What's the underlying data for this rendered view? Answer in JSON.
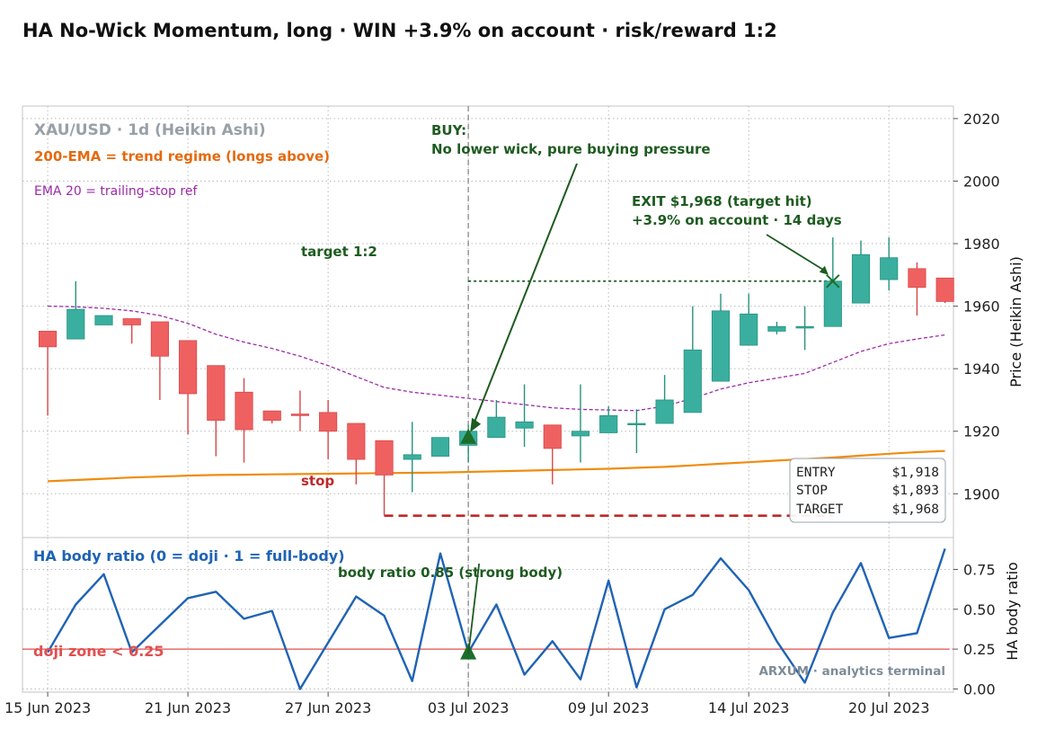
{
  "title": "HA No-Wick Momentum, long · WIN +3.9% on account · risk/reward 1:2",
  "colors": {
    "up": "#3aaf9f",
    "up_edge": "#27927f",
    "down": "#ef6161",
    "down_edge": "#d74747",
    "ema200": "#f08c10",
    "ema20": "#9c2aa8",
    "body_ratio": "#1f63b4",
    "doji_line": "#e05050",
    "annot_green": "#1e5b20",
    "stop_red": "#bd2a2a",
    "entry_line": "#999999"
  },
  "chart_data": [
    {
      "type": "candlestick",
      "subtitle": "XAU/USD · 1d (Heikin Ashi)",
      "ylabel": "Price (Heikin Ashi)",
      "ylim": [
        1886,
        2024
      ],
      "yticks": [
        1900,
        1920,
        1940,
        1960,
        1980,
        2000,
        2020
      ],
      "xlim": [
        -0.9,
        32.3
      ],
      "x_tick_labels": [
        {
          "i": 0,
          "label": "15 Jun 2023"
        },
        {
          "i": 5,
          "label": "21 Jun 2023"
        },
        {
          "i": 10,
          "label": "27 Jun 2023"
        },
        {
          "i": 15,
          "label": "03 Jul 2023"
        },
        {
          "i": 20,
          "label": "09 Jul 2023"
        },
        {
          "i": 25,
          "label": "14 Jul 2023"
        },
        {
          "i": 30,
          "label": "20 Jul 2023"
        }
      ],
      "grid": true,
      "candles": [
        {
          "o": 1952,
          "h": 1952,
          "l": 1925,
          "c": 1947
        },
        {
          "o": 1949.5,
          "h": 1968,
          "l": 1949.5,
          "c": 1959
        },
        {
          "o": 1954,
          "h": 1957,
          "l": 1954,
          "c": 1957
        },
        {
          "o": 1956,
          "h": 1956,
          "l": 1948,
          "c": 1954
        },
        {
          "o": 1955,
          "h": 1955,
          "l": 1930,
          "c": 1944
        },
        {
          "o": 1949,
          "h": 1949,
          "l": 1919,
          "c": 1932
        },
        {
          "o": 1941,
          "h": 1941,
          "l": 1912,
          "c": 1923.5
        },
        {
          "o": 1932.5,
          "h": 1937,
          "l": 1910,
          "c": 1920.5
        },
        {
          "o": 1926.5,
          "h": 1926.5,
          "l": 1922.5,
          "c": 1923.5
        },
        {
          "o": 1925.5,
          "h": 1933,
          "l": 1920,
          "c": 1925
        },
        {
          "o": 1926,
          "h": 1930,
          "l": 1911,
          "c": 1920
        },
        {
          "o": 1922.5,
          "h": 1922.5,
          "l": 1903,
          "c": 1911
        },
        {
          "o": 1917,
          "h": 1917,
          "l": 1893,
          "c": 1906
        },
        {
          "o": 1911,
          "h": 1923,
          "l": 1900.5,
          "c": 1912.5
        },
        {
          "o": 1912,
          "h": 1918,
          "l": 1912,
          "c": 1918
        },
        {
          "o": 1915.5,
          "h": 1922,
          "l": 1910,
          "c": 1920
        },
        {
          "o": 1918,
          "h": 1930,
          "l": 1918,
          "c": 1924.5
        },
        {
          "o": 1921,
          "h": 1935,
          "l": 1915,
          "c": 1923
        },
        {
          "o": 1922,
          "h": 1922,
          "l": 1903,
          "c": 1914.5
        },
        {
          "o": 1918.5,
          "h": 1935,
          "l": 1910,
          "c": 1920
        },
        {
          "o": 1919.5,
          "h": 1928,
          "l": 1919.5,
          "c": 1925
        },
        {
          "o": 1922.5,
          "h": 1927,
          "l": 1913,
          "c": 1922.5
        },
        {
          "o": 1922.5,
          "h": 1938,
          "l": 1922.5,
          "c": 1930
        },
        {
          "o": 1926,
          "h": 1960,
          "l": 1926,
          "c": 1946
        },
        {
          "o": 1936,
          "h": 1964,
          "l": 1936,
          "c": 1958.5
        },
        {
          "o": 1947.5,
          "h": 1964,
          "l": 1947.5,
          "c": 1957.5
        },
        {
          "o": 1952,
          "h": 1955,
          "l": 1951,
          "c": 1953.5
        },
        {
          "o": 1953,
          "h": 1960,
          "l": 1946,
          "c": 1953.5
        },
        {
          "o": 1953.5,
          "h": 1982,
          "l": 1953.5,
          "c": 1968
        },
        {
          "o": 1961,
          "h": 1981,
          "l": 1961,
          "c": 1976.5
        },
        {
          "o": 1968.5,
          "h": 1982,
          "l": 1965,
          "c": 1975.5
        },
        {
          "o": 1972,
          "h": 1974,
          "l": 1957,
          "c": 1966
        },
        {
          "o": 1969,
          "h": 1969,
          "l": 1961,
          "c": 1961.5
        }
      ],
      "ema200": [
        1904,
        1904.4,
        1904.8,
        1905.2,
        1905.5,
        1905.8,
        1906,
        1906.1,
        1906.2,
        1906.3,
        1906.4,
        1906.5,
        1906.6,
        1906.7,
        1906.8,
        1907,
        1907.2,
        1907.4,
        1907.6,
        1907.8,
        1908,
        1908.3,
        1908.6,
        1909.1,
        1909.6,
        1910.1,
        1910.6,
        1911.1,
        1911.6,
        1912.2,
        1912.8,
        1913.3,
        1913.7
      ],
      "ema20": [
        1960,
        1959.8,
        1959.3,
        1958.5,
        1957,
        1954.5,
        1951,
        1948.5,
        1946.5,
        1944,
        1941,
        1937.5,
        1934,
        1932.5,
        1931.5,
        1930.5,
        1929.5,
        1928.5,
        1927.5,
        1927,
        1926.8,
        1926.6,
        1928,
        1930.5,
        1933.5,
        1935.5,
        1937,
        1938.5,
        1942,
        1945.5,
        1948,
        1949.5,
        1950.8
      ],
      "levels": {
        "entry": 1918,
        "stop": 1893,
        "target": 1968,
        "target_start_i": 15,
        "target_end_i": 28,
        "stop_start_i": 12,
        "stop_end_i": 28,
        "entry_i": 15,
        "exit_i": 28
      },
      "info_box": [
        {
          "label": "ENTRY",
          "value": "$1,918"
        },
        {
          "label": "STOP",
          "value": "$1,893"
        },
        {
          "label": "TARGET",
          "value": "$1,968"
        }
      ],
      "annotations": {
        "legend_ema200": "200-EMA = trend regime (longs above)",
        "legend_ema20": "EMA 20 = trailing-stop ref",
        "buy_line1": "BUY:",
        "buy_line2": "No lower wick, pure buying pressure",
        "exit_line1": "EXIT $1,968 (target hit)",
        "exit_line2": "+3.9% on account  ·  14 days",
        "target_label": "target 1:2",
        "stop_label": "stop"
      }
    },
    {
      "type": "line",
      "title": "HA body ratio (0 = doji · 1 = full-body)",
      "ylabel": "HA body ratio",
      "ylim": [
        -0.02,
        0.95
      ],
      "yticks": [
        0.0,
        0.25,
        0.5,
        0.75
      ],
      "ytick_labels": [
        "0.00",
        "0.25",
        "0.50",
        "0.75"
      ],
      "values": [
        0.23,
        0.53,
        0.72,
        0.23,
        0.4,
        0.57,
        0.61,
        0.44,
        0.49,
        0.0,
        0.29,
        0.58,
        0.46,
        0.05,
        0.85,
        0.23,
        0.53,
        0.09,
        0.3,
        0.06,
        0.68,
        0.01,
        0.5,
        0.59,
        0.82,
        0.62,
        0.3,
        0.04,
        0.48,
        0.79,
        0.32,
        0.35,
        0.88
      ],
      "doji_threshold": 0.25,
      "doji_label": "doji zone < 0.25",
      "annotation": "body ratio 0.85 (strong body)",
      "watermark": "ARXUM · analytics terminal"
    }
  ]
}
